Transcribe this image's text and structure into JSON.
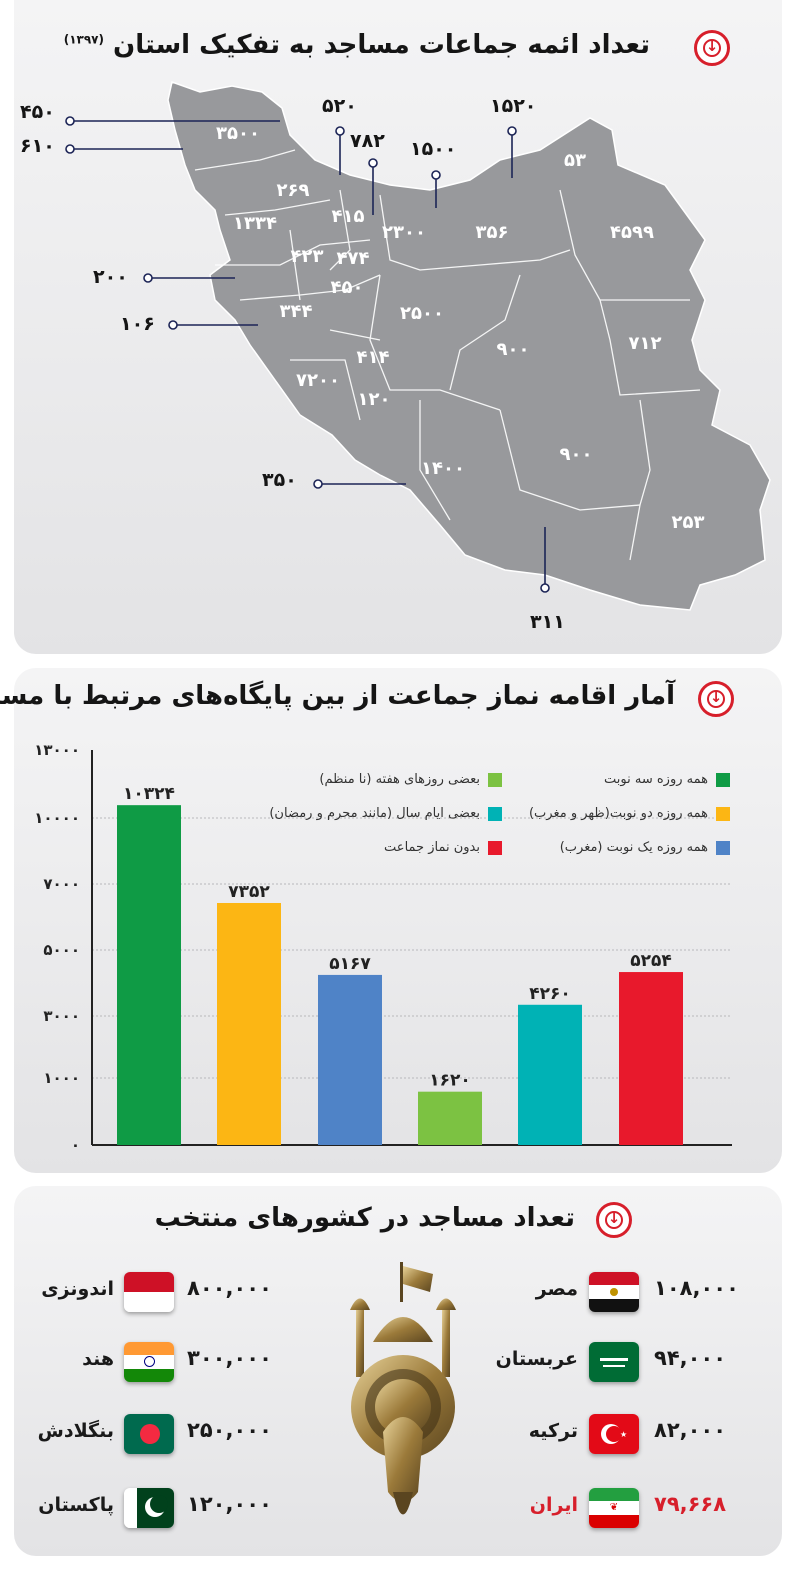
{
  "section1": {
    "title": "تعداد ائمه جماعات مساجد به تفکیک استان",
    "year": "(۱۳۹۷)",
    "map_values": [
      "۳۵۰۰",
      "۲۶۹",
      "۱۳۳۴",
      "۴۱۵",
      "۲۳۰۰",
      "۳۵۶",
      "۴۵۹۹",
      "۵۳",
      "۴۲۳",
      "۴۷۴",
      "۴۵۰",
      "۳۴۴",
      "۲۵۰۰",
      "۹۰۰",
      "۷۱۲",
      "۴۱۴",
      "۷۲۰۰",
      "۱۲۰",
      "۹۰۰",
      "۱۴۰۰",
      "۲۵۳"
    ],
    "callouts": [
      "۴۵۰",
      "۶۱۰",
      "۵۲۰",
      "۷۸۲",
      "۱۵۰۰",
      "۱۵۲۰",
      "۲۰۰",
      "۱۰۶",
      "۳۵۰",
      "۳۱۱"
    ]
  },
  "section2": {
    "title": "آمار اقامه نماز جماعت از بین پایگاه‌های مرتبط با مسجد"
  },
  "chart_data": {
    "type": "bar",
    "title": "آمار اقامه نماز جماعت از بین پایگاه‌های مرتبط با مسجد",
    "categories": [
      "همه روزه سه نوبت",
      "همه روزه دو نوبت(ظهر و مغرب)",
      "همه روزه یک نوبت (مغرب)",
      "بعضی روزهای هفته (نا منظم)",
      "بعضی ایام سال (مانند محرم و رمضان)",
      "بدون نماز جماعت"
    ],
    "values": [
      10324,
      7352,
      5167,
      1620,
      4260,
      5254
    ],
    "value_labels": [
      "۱۰۳۲۴",
      "۷۳۵۲",
      "۵۱۶۷",
      "۱۶۲۰",
      "۴۲۶۰",
      "۵۲۵۴"
    ],
    "colors": [
      "#0f9b45",
      "#fcb614",
      "#4f83c7",
      "#7cc242",
      "#00b2b5",
      "#e8192c"
    ],
    "y_tick_labels": [
      "۰",
      "۱۰۰۰",
      "۳۰۰۰",
      "۵۰۰۰",
      "۷۰۰۰",
      "۱۰۰۰۰",
      "۱۳۰۰۰"
    ],
    "ylim": [
      0,
      12000
    ],
    "grid": true,
    "legend": "top"
  },
  "section3": {
    "title": "تعداد مساجد در کشورهای منتخب",
    "right_countries": [
      {
        "name": "مصر",
        "value": "۱۰۸,۰۰۰",
        "flag": "egypt"
      },
      {
        "name": "عربستان",
        "value": "۹۴,۰۰۰",
        "flag": "saudi"
      },
      {
        "name": "ترکیه",
        "value": "۸۲,۰۰۰",
        "flag": "turkey"
      },
      {
        "name": "ایران",
        "value": "۷۹,۶۶۸",
        "flag": "iran"
      }
    ],
    "left_countries": [
      {
        "name": "اندونزی",
        "value": "۸۰۰,۰۰۰",
        "flag": "indonesia"
      },
      {
        "name": "هند",
        "value": "۳۰۰,۰۰۰",
        "flag": "india"
      },
      {
        "name": "بنگلادش",
        "value": "۲۵۰,۰۰۰",
        "flag": "bangladesh"
      },
      {
        "name": "پاکستان",
        "value": "۱۲۰,۰۰۰",
        "flag": "pakistan"
      }
    ],
    "highlight_color": "#d71f2b"
  }
}
